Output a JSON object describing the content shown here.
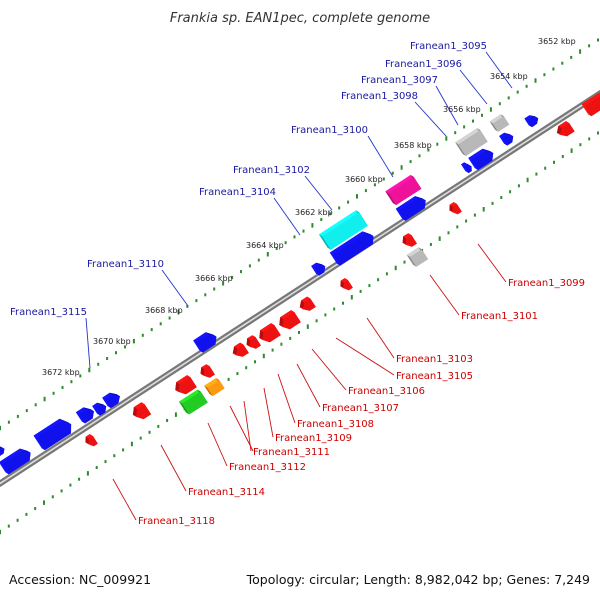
{
  "title": "Frankia sp. EAN1pec, complete genome",
  "footer": {
    "accession": "Accession: NC_009921",
    "summary": "Topology: circular; Length: 8,982,042 bp; Genes: 7,249"
  },
  "colors": {
    "forward_label": "#1a1aa0",
    "reverse_label": "#cc0000",
    "leader_forward": "#2233cc",
    "leader_reverse": "#cc1111",
    "backbone": "#777777",
    "tick_dots": "#2e8b2e",
    "gene_forward": "#1111ee",
    "gene_reverse": "#ee1111",
    "gene_gray": "#b8b8b8",
    "gene_cyan": "#11eeee",
    "gene_magenta": "#ee1199",
    "gene_green": "#22cc22",
    "gene_orange": "#ff9911"
  },
  "kbp_scale": [
    "3652 kbp",
    "3654 kbp",
    "3656 kbp",
    "3658 kbp",
    "3660 kbp",
    "3662 kbp",
    "3664 kbp",
    "3666 kbp",
    "3668 kbp",
    "3670 kbp",
    "3672 kbp"
  ],
  "genes_forward": [
    "Franean1_3095",
    "Franean1_3096",
    "Franean1_3097",
    "Franean1_3098",
    "Franean1_3100",
    "Franean1_3102",
    "Franean1_3104",
    "Franean1_3110",
    "Franean1_3115"
  ],
  "genes_reverse": [
    "Franean1_3099",
    "Franean1_3101",
    "Franean1_3103",
    "Franean1_3105",
    "Franean1_3106",
    "Franean1_3107",
    "Franean1_3108",
    "Franean1_3109",
    "Franean1_3111",
    "Franean1_3112",
    "Franean1_3114",
    "Franean1_3118"
  ]
}
